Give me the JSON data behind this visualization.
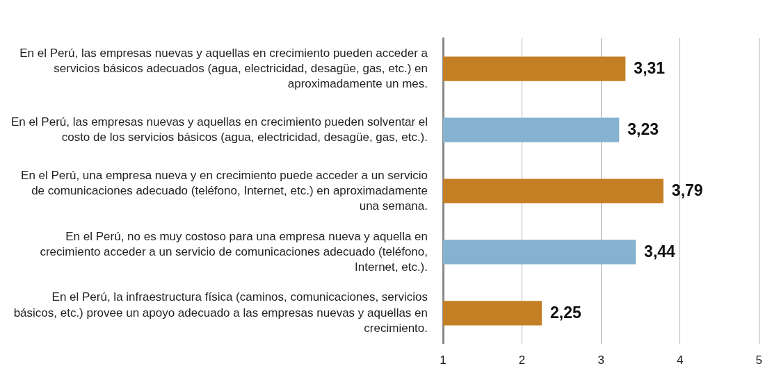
{
  "chart_data": {
    "type": "bar",
    "orientation": "horizontal",
    "categories": [
      "En el Perú, las empresas nuevas y aquellas en crecimiento pueden acceder a servicios básicos adecuados (agua, electricidad, desagüe, gas, etc.) en aproximadamente un mes.",
      "En el Perú, las empresas nuevas y aquellas en crecimiento pueden solventar el costo de los servicios básicos (agua, electricidad, desagüe, gas, etc.).",
      "En el Perú, una empresa nueva y en crecimiento puede acceder a un servicio de comunicaciones adecuado (teléfono, Internet, etc.) en aproximadamente una semana.",
      "En el Perú, no es muy costoso para una empresa nueva y aquella en crecimiento acceder a un servicio de comunicaciones adecuado (teléfono, Internet, etc.).",
      "En el Perú, la infraestructura física (caminos, comunicaciones, servicios básicos, etc.) provee un apoyo adecuado a las empresas nuevas y aquellas en crecimiento."
    ],
    "values": [
      3.31,
      3.23,
      3.79,
      3.44,
      2.25
    ],
    "colors": [
      "#c47f24",
      "#85b2d1",
      "#c47f24",
      "#85b2d1",
      "#c47f24"
    ],
    "value_labels": [
      "3,31",
      "3,23",
      "3,79",
      "3,44",
      "2,25"
    ],
    "xlim": [
      1,
      5
    ],
    "xticks": [
      1,
      2,
      3,
      4,
      5
    ],
    "grid": "x",
    "legend": false
  }
}
